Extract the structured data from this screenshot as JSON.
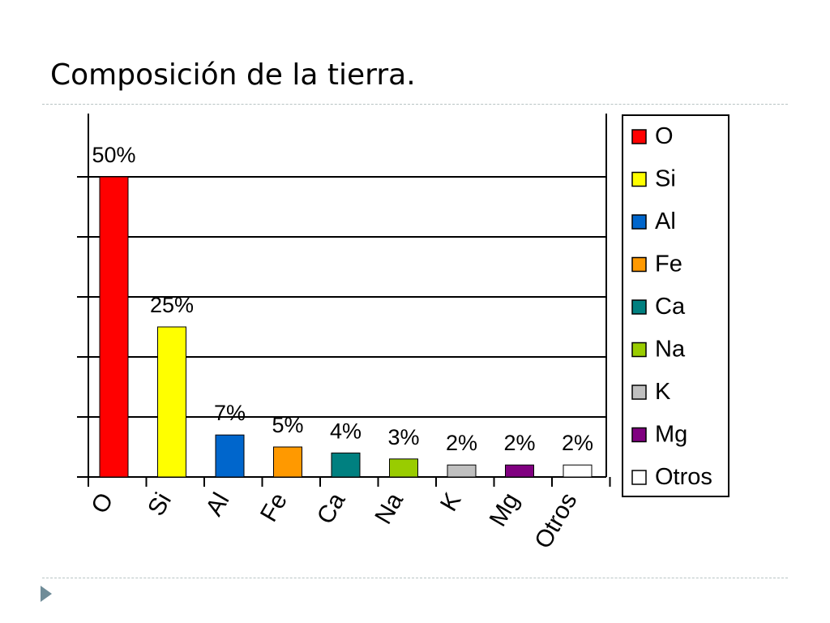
{
  "slide": {
    "title": "Composición de la tierra."
  },
  "colors": {
    "grid": "#000000",
    "divider": "#b8c4c4",
    "nav_arrow": "#6f8c98"
  },
  "icons": {
    "nav": "triangle-right-icon"
  },
  "chart_data": {
    "type": "bar",
    "title": "",
    "xlabel": "",
    "ylabel": "",
    "categories": [
      "O",
      "Si",
      "Al",
      "Fe",
      "Ca",
      "Na",
      "K",
      "Mg",
      "Otros"
    ],
    "values": [
      50,
      25,
      7,
      5,
      4,
      3,
      2,
      2,
      2
    ],
    "data_labels": [
      "50%",
      "25%",
      "7%",
      "5%",
      "4%",
      "3%",
      "2%",
      "2%",
      "2%"
    ],
    "colors": [
      "#ff0000",
      "#ffff00",
      "#0066cc",
      "#ff9900",
      "#008080",
      "#99cc00",
      "#c0c0c0",
      "#800080",
      "#ffffff"
    ],
    "ylim": [
      0,
      50
    ],
    "grid": true,
    "legend": {
      "position": "right",
      "entries": [
        "O",
        "Si",
        "Al",
        "Fe",
        "Ca",
        "Na",
        "K",
        "Mg",
        "Otros"
      ]
    }
  }
}
